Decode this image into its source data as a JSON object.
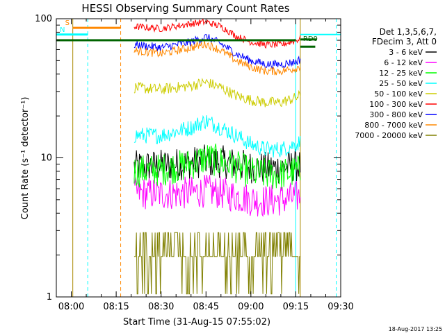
{
  "chart_data": {
    "type": "line",
    "title": "HESSI Observing Summary Count Rates",
    "xlabel": "Start Time (31-Aug-15 07:55:02)",
    "ylabel": "Count Rate (s⁻¹ detector⁻¹)",
    "xlim_minutes_since_0755": [
      0,
      95
    ],
    "ylim": [
      1,
      100
    ],
    "y_scale": "log",
    "x_ticks": [
      {
        "label": "08:00",
        "t": 5
      },
      {
        "label": "08:15",
        "t": 20
      },
      {
        "label": "08:30",
        "t": 35
      },
      {
        "label": "08:45",
        "t": 50
      },
      {
        "label": "09:00",
        "t": 65
      },
      {
        "label": "09:15",
        "t": 80
      },
      {
        "label": "09:30",
        "t": 95
      }
    ],
    "y_ticks": [
      {
        "label": "1",
        "v": 1
      },
      {
        "label": "10",
        "v": 10
      },
      {
        "label": "100",
        "v": 100
      }
    ],
    "legend_header": [
      "Det 1,3,5,6,7,",
      "FDecim 3, Att 0"
    ],
    "series": [
      {
        "name": "3 - 6 keV",
        "color": "#000000",
        "t": [
          26,
          35,
          45,
          50,
          55,
          60,
          65,
          70,
          75,
          80,
          81.5
        ],
        "values": [
          8.6,
          8.8,
          9.2,
          9.5,
          9.4,
          9.0,
          8.6,
          8.4,
          8.5,
          8.8,
          8.8
        ]
      },
      {
        "name": "6 - 12 keV",
        "color": "#ff00ff",
        "t": [
          26,
          35,
          45,
          50,
          55,
          60,
          65,
          70,
          75,
          80,
          81.5
        ],
        "values": [
          5.6,
          5.5,
          5.6,
          5.8,
          5.6,
          5.3,
          5.0,
          4.9,
          5.0,
          5.2,
          5.3
        ]
      },
      {
        "name": "12 - 25 keV",
        "color": "#00ff00",
        "t": [
          26,
          35,
          45,
          50,
          55,
          60,
          65,
          70,
          75,
          80,
          81.5
        ],
        "values": [
          8.0,
          8.2,
          9.0,
          10.0,
          9.4,
          8.6,
          7.8,
          7.6,
          7.6,
          8.0,
          8.0
        ]
      },
      {
        "name": "25 - 50 keV",
        "color": "#00ffff",
        "t": [
          26,
          35,
          45,
          50,
          55,
          60,
          65,
          70,
          75,
          80,
          81.5
        ],
        "values": [
          14.5,
          14.5,
          16.5,
          18.5,
          16.5,
          14.5,
          12.5,
          11.5,
          11.5,
          12.5,
          13.0
        ]
      },
      {
        "name": "50 - 100 keV",
        "color": "#cccc00",
        "t": [
          26,
          35,
          45,
          50,
          55,
          60,
          65,
          70,
          75,
          80,
          81.5
        ],
        "values": [
          32,
          31,
          33,
          35,
          32,
          28,
          26,
          25,
          25,
          27,
          28
        ]
      },
      {
        "name": "100 - 300 keV",
        "color": "#ff0000",
        "t": [
          26,
          35,
          45,
          50,
          55,
          60,
          65,
          70,
          75,
          80,
          81.5
        ],
        "values": [
          88,
          85,
          92,
          95,
          88,
          75,
          68,
          65,
          65,
          70,
          72
        ]
      },
      {
        "name": "300 - 800 keV",
        "color": "#0000ff",
        "t": [
          26,
          35,
          45,
          50,
          55,
          60,
          65,
          70,
          75,
          80,
          81.5
        ],
        "values": [
          65,
          62,
          68,
          74,
          66,
          56,
          50,
          47,
          47,
          49,
          51
        ]
      },
      {
        "name": "800 - 7000 keV",
        "color": "#ff8800",
        "t": [
          26,
          35,
          45,
          50,
          55,
          60,
          65,
          70,
          75,
          80,
          81.5
        ],
        "values": [
          59,
          56,
          62,
          66,
          59,
          50,
          45,
          42,
          42,
          44,
          46
        ]
      },
      {
        "name": "7000 - 20000 keV",
        "color": "#808000",
        "t": [
          26,
          35,
          45,
          50,
          55,
          60,
          65,
          70,
          75,
          80,
          81.5
        ],
        "values": [
          2,
          2,
          2.5,
          2.8,
          2.5,
          2,
          2,
          2,
          2,
          2.2,
          2.2
        ]
      }
    ],
    "annotations": [
      {
        "label": "S",
        "t": 5.5,
        "t_end": 21.5,
        "v": 86,
        "color": "#ff8800"
      },
      {
        "label": "N",
        "t": 0,
        "t_end": 10.5,
        "v": 77,
        "color": "#00ffff"
      },
      {
        "label": "RD0",
        "t": 81.5,
        "t_end": 87,
        "v": 71,
        "color": "#006400"
      }
    ],
    "level_lines": [
      {
        "v": 77,
        "color": "#00ffff",
        "t": [
          0,
          10.5
        ],
        "t2": [
          81.5,
          95
        ]
      },
      {
        "v": 70,
        "color": "#006400",
        "t": [
          0,
          80
        ]
      },
      {
        "v": 63,
        "color": "#006400",
        "t": [
          81.5,
          86.5
        ]
      }
    ],
    "vertical_markers": [
      {
        "t": 5.5,
        "color": "#aa8800",
        "style": "solid"
      },
      {
        "t": 10.5,
        "color": "#00ffff",
        "style": "dashed"
      },
      {
        "t": 21.5,
        "color": "#ff8800",
        "style": "dashed"
      },
      {
        "t": 80,
        "color": "#00ffff",
        "style": "solid"
      },
      {
        "t": 81.5,
        "color": "#aa8800",
        "style": "solid"
      },
      {
        "t": 93.5,
        "color": "#00ffff",
        "style": "dashed"
      }
    ],
    "footer_timestamp": "18-Aug-2017 13:25"
  }
}
